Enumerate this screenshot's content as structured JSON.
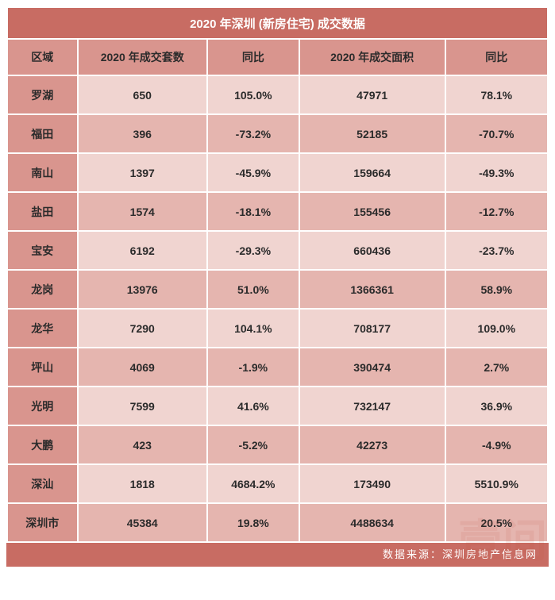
{
  "title": "2020 年深圳 (新房住宅) 成交数据",
  "columns": [
    "区域",
    "2020 年成交套数",
    "同比",
    "2020 年成交面积",
    "同比"
  ],
  "rows": [
    [
      "罗湖",
      "650",
      "105.0%",
      "47971",
      "78.1%"
    ],
    [
      "福田",
      "396",
      "-73.2%",
      "52185",
      "-70.7%"
    ],
    [
      "南山",
      "1397",
      "-45.9%",
      "159664",
      "-49.3%"
    ],
    [
      "盐田",
      "1574",
      "-18.1%",
      "155456",
      "-12.7%"
    ],
    [
      "宝安",
      "6192",
      "-29.3%",
      "660436",
      "-23.7%"
    ],
    [
      "龙岗",
      "13976",
      "51.0%",
      "1366361",
      "58.9%"
    ],
    [
      "龙华",
      "7290",
      "104.1%",
      "708177",
      "109.0%"
    ],
    [
      "坪山",
      "4069",
      "-1.9%",
      "390474",
      "2.7%"
    ],
    [
      "光明",
      "7599",
      "41.6%",
      "732147",
      "36.9%"
    ],
    [
      "大鹏",
      "423",
      "-5.2%",
      "42273",
      "-4.9%"
    ],
    [
      "深汕",
      "1818",
      "4684.2%",
      "173490",
      "5510.9%"
    ],
    [
      "深圳市",
      "45384",
      "19.8%",
      "4488634",
      "20.5%"
    ]
  ],
  "footer": "数据来源：深圳房地产信息网",
  "watermark": "壹间",
  "colors": {
    "border": "#ffffff",
    "title_bg": "#c86c63",
    "head_bg": "#d9958e",
    "row_odd": "#f0d4d0",
    "row_even": "#e5b5af",
    "text": "#2b2b2b"
  }
}
